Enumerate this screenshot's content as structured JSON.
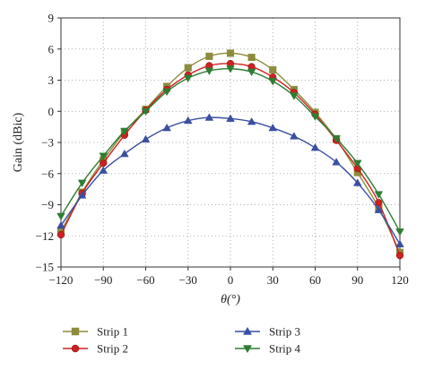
{
  "chart_data": {
    "type": "line",
    "xlabel": "θ(°)",
    "ylabel": "Gain (dBic)",
    "xlim": [
      -120,
      120
    ],
    "ylim": [
      -15,
      9
    ],
    "xticks": [
      -120,
      -90,
      -60,
      -30,
      0,
      30,
      60,
      90,
      120
    ],
    "yticks": [
      -15,
      -12,
      -9,
      -6,
      -3,
      0,
      3,
      6,
      9
    ],
    "xtick_labels": [
      "−120",
      "−90",
      "−60",
      "−30",
      "0",
      "30",
      "60",
      "90",
      "120"
    ],
    "ytick_labels": [
      "−15",
      "−12",
      "−9",
      "−6",
      "−3",
      "0",
      "3",
      "6",
      "9"
    ],
    "grid": "dotted",
    "legend_position": "bottom",
    "x": [
      -120,
      -105,
      -90,
      -75,
      -60,
      -45,
      -30,
      -15,
      0,
      15,
      30,
      45,
      60,
      75,
      90,
      105,
      120
    ],
    "series": [
      {
        "name": "Strip 1",
        "color": "#8c8c3c",
        "marker": "square",
        "values": [
          -11.6,
          -7.8,
          -4.7,
          -2.0,
          0.2,
          2.4,
          4.2,
          5.3,
          5.6,
          5.2,
          4.0,
          2.1,
          -0.1,
          -2.7,
          -5.9,
          -9.3,
          -13.6
        ]
      },
      {
        "name": "Strip 2",
        "color": "#cc2222",
        "marker": "circle",
        "values": [
          -11.9,
          -7.9,
          -5.0,
          -2.3,
          0.1,
          2.1,
          3.5,
          4.4,
          4.6,
          4.3,
          3.3,
          1.8,
          -0.3,
          -2.8,
          -5.5,
          -8.8,
          -13.9
        ]
      },
      {
        "name": "Strip 3",
        "color": "#3a4fa0",
        "marker": "triangle-up",
        "values": [
          -11.0,
          -8.1,
          -5.7,
          -4.1,
          -2.7,
          -1.6,
          -0.9,
          -0.6,
          -0.7,
          -1.0,
          -1.6,
          -2.4,
          -3.5,
          -4.9,
          -6.9,
          -9.5,
          -12.8
        ]
      },
      {
        "name": "Strip 4",
        "color": "#2e7d32",
        "marker": "triangle-down",
        "values": [
          -10.1,
          -6.9,
          -4.3,
          -1.9,
          0.0,
          1.9,
          3.2,
          3.9,
          4.1,
          3.8,
          2.9,
          1.5,
          -0.5,
          -2.6,
          -5.0,
          -8.0,
          -11.6
        ]
      }
    ]
  }
}
